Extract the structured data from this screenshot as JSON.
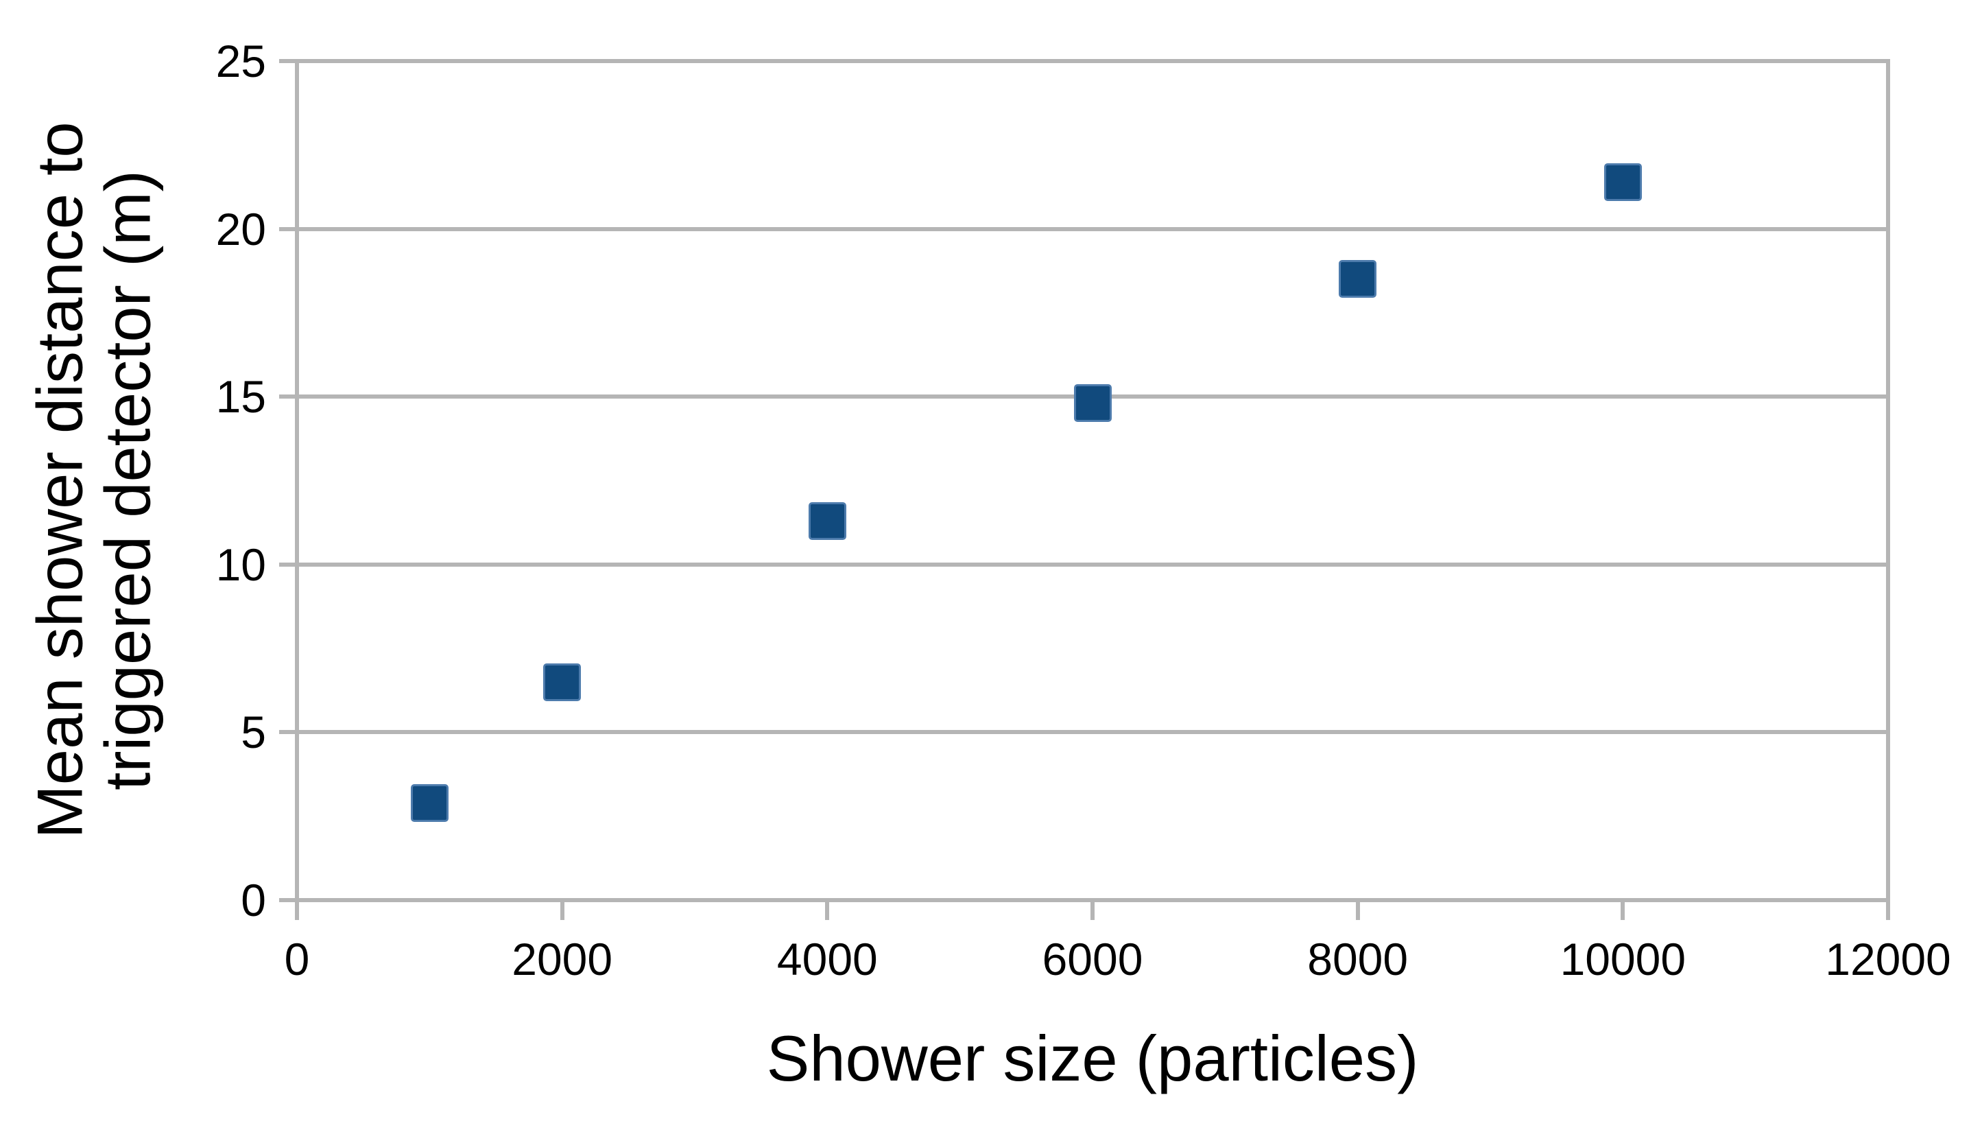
{
  "chart_data": {
    "type": "scatter",
    "title": "",
    "xlabel": "Shower size (particles)",
    "ylabel_lines": [
      "Mean shower distance to",
      "triggered detector (m)"
    ],
    "xlim": [
      0,
      12000
    ],
    "ylim": [
      0,
      25
    ],
    "x_ticks": [
      0,
      2000,
      4000,
      6000,
      8000,
      10000,
      12000
    ],
    "y_ticks": [
      0,
      5,
      10,
      15,
      20,
      25
    ],
    "grid": "horizontal-only",
    "legend": "none",
    "marker_shape": "square",
    "series": [
      {
        "name": "Mean shower distance to triggered detector",
        "x": [
          1000,
          2000,
          4000,
          6000,
          8000,
          10000
        ],
        "y": [
          2.9,
          6.5,
          11.3,
          14.8,
          18.5,
          21.4
        ]
      }
    ],
    "colors": {
      "marker_fill": "#114a7d",
      "marker_edge": "#4d7bac",
      "grid": "#b5b5b5",
      "text": "#000000",
      "background": "#ffffff"
    }
  }
}
